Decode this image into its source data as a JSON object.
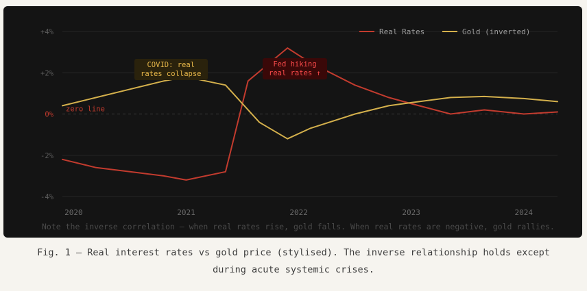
{
  "chart_data": {
    "type": "line",
    "xlabel": "",
    "ylabel": "",
    "x_ticks": [
      "2020",
      "2021",
      "2022",
      "2023",
      "2024"
    ],
    "y_ticks": [
      "+4%",
      "+2%",
      "0%",
      "-2%",
      "-4%"
    ],
    "ylim": [
      -4,
      4
    ],
    "xlim": [
      2019.9,
      2024.3
    ],
    "grid": true,
    "legend_position": "top-right",
    "series": [
      {
        "name": "Real Rates",
        "color": "#c23b2e",
        "x": [
          2019.9,
          2020.2,
          2020.5,
          2020.8,
          2021.0,
          2021.35,
          2021.55,
          2021.9,
          2022.1,
          2022.5,
          2022.8,
          2023.0,
          2023.35,
          2023.65,
          2024.0,
          2024.3
        ],
        "y": [
          -2.2,
          -2.6,
          -2.8,
          -3.0,
          -3.2,
          -2.8,
          1.6,
          3.2,
          2.5,
          1.4,
          0.8,
          0.5,
          0.0,
          0.2,
          0.0,
          0.1
        ]
      },
      {
        "name": "Gold (inverted)",
        "color": "#d4b04c",
        "x": [
          2019.9,
          2020.2,
          2020.5,
          2020.8,
          2021.0,
          2021.35,
          2021.65,
          2021.9,
          2022.1,
          2022.5,
          2022.8,
          2023.0,
          2023.35,
          2023.65,
          2024.0,
          2024.3
        ],
        "y": [
          0.4,
          0.8,
          1.2,
          1.6,
          1.8,
          1.4,
          -0.4,
          -1.2,
          -0.7,
          0.0,
          0.4,
          0.55,
          0.8,
          0.85,
          0.75,
          0.6
        ]
      }
    ],
    "annotations": [
      {
        "id": "zero",
        "text": "zero line"
      },
      {
        "id": "covid",
        "text": [
          "COVID: real",
          "rates collapse"
        ]
      },
      {
        "id": "fed",
        "text": [
          "Fed hiking",
          "real rates ↑"
        ]
      }
    ],
    "note": "Note the inverse correlation — when real rates rise, gold falls. When real rates are negative, gold rallies."
  },
  "caption": {
    "line1": "Fig. 1 — Real interest rates vs gold price (stylised). The inverse relationship holds except",
    "line2": "during acute systemic crises."
  }
}
